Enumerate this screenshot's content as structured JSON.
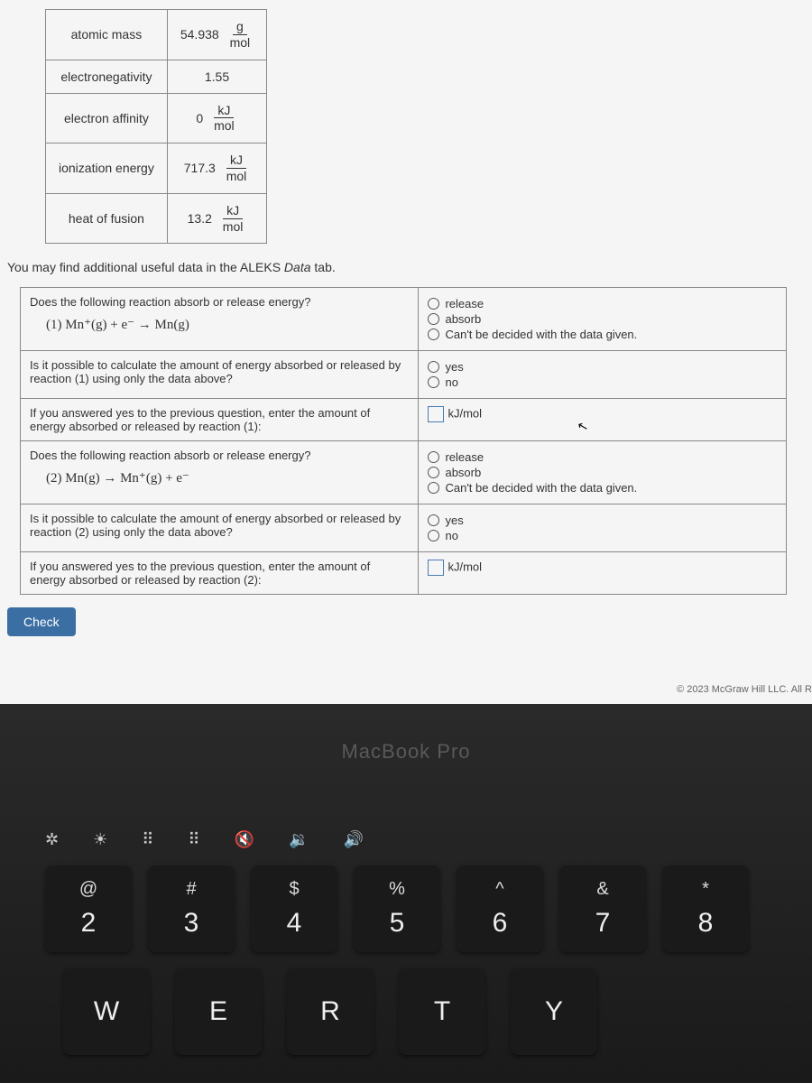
{
  "properties": {
    "rows": [
      {
        "label": "atomic mass",
        "value": "54.938",
        "unit_num": "g",
        "unit_den": "mol"
      },
      {
        "label": "electronegativity",
        "value": "1.55",
        "unit_num": "",
        "unit_den": ""
      },
      {
        "label": "electron affinity",
        "value": "0",
        "unit_num": "kJ",
        "unit_den": "mol"
      },
      {
        "label": "ionization energy",
        "value": "717.3",
        "unit_num": "kJ",
        "unit_den": "mol"
      },
      {
        "label": "heat of fusion",
        "value": "13.2",
        "unit_num": "kJ",
        "unit_den": "mol"
      }
    ]
  },
  "hint": {
    "prefix": "You may find additional useful data in the ALEKS ",
    "ital": "Data",
    "suffix": " tab."
  },
  "questions": {
    "q1": {
      "prompt": "Does the following reaction absorb or release energy?",
      "eq_label": "(1)   Mn⁺(g) + e⁻  →  Mn(g)",
      "opts": [
        "release",
        "absorb",
        "Can't be decided with the data given."
      ]
    },
    "q2": {
      "prompt": "Is it possible to calculate the amount of energy absorbed or released by reaction (1) using only the data above?",
      "opts": [
        "yes",
        "no"
      ]
    },
    "q3": {
      "prompt": "If you answered yes to the previous question, enter the amount of energy absorbed or released by reaction (1):",
      "unit": "kJ/mol"
    },
    "q4": {
      "prompt": "Does the following reaction absorb or release energy?",
      "eq_label": "(2)   Mn(g)  →  Mn⁺(g) + e⁻",
      "opts": [
        "release",
        "absorb",
        "Can't be decided with the data given."
      ]
    },
    "q5": {
      "prompt": "Is it possible to calculate the amount of energy absorbed or released by reaction (2) using only the data above?",
      "opts": [
        "yes",
        "no"
      ]
    },
    "q6": {
      "prompt": "If you answered yes to the previous question, enter the amount of energy absorbed or released by reaction (2):",
      "unit": "kJ/mol"
    }
  },
  "check_label": "Check",
  "copyright": "© 2023 McGraw Hill LLC. All R",
  "laptop": "MacBook Pro",
  "fnkeys": [
    "✲",
    "☀",
    "⠿",
    "⠿",
    "🔇",
    "🔉",
    "🔊"
  ],
  "numkeys": [
    {
      "t": "@",
      "b": "2"
    },
    {
      "t": "#",
      "b": "3"
    },
    {
      "t": "$",
      "b": "4"
    },
    {
      "t": "%",
      "b": "5"
    },
    {
      "t": "^",
      "b": "6"
    },
    {
      "t": "&",
      "b": "7"
    },
    {
      "t": "*",
      "b": "8"
    }
  ],
  "letterkeys": [
    "W",
    "E",
    "R",
    "T",
    "Y"
  ],
  "colors": {
    "border": "#888888",
    "text": "#333333",
    "button_bg": "#3b6fa3",
    "button_text": "#ffffff",
    "page_bg": "#f5f5f5",
    "input_border": "#4a7bb5"
  }
}
